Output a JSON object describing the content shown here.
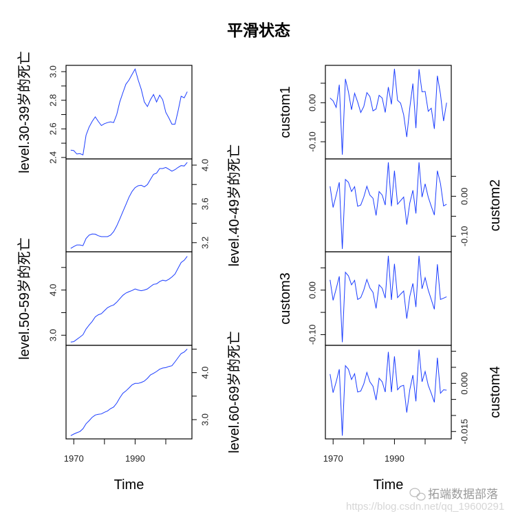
{
  "chart_data": {
    "type": "line",
    "title": "平滑状态",
    "line_color": "#1a3cff",
    "x": [
      1969,
      1970,
      1971,
      1972,
      1973,
      1974,
      1975,
      1976,
      1977,
      1978,
      1979,
      1980,
      1981,
      1982,
      1983,
      1984,
      1985,
      1986,
      1987,
      1988,
      1989,
      1990,
      1991,
      1992,
      1993,
      1994,
      1995,
      1996,
      1997,
      1998,
      1999,
      2000,
      2001,
      2002,
      2003,
      2004,
      2005,
      2006,
      2007
    ],
    "xlim": [
      1967.48,
      2008.52
    ],
    "xticks": [
      1970,
      1980,
      1990,
      2000
    ],
    "xtick_labels": [
      "1970",
      "",
      "1990",
      ""
    ],
    "xlabel": "Time",
    "grid": false,
    "columns": [
      {
        "panels": [
          {
            "ylabel": "level.30-39岁的死亡",
            "axis": "left",
            "ylim": [
              2.39,
              3.044
            ],
            "yticks": [
              2.4,
              2.5,
              2.6,
              2.7,
              2.8,
              2.9,
              3.0
            ],
            "ytick_labels": [
              "2.4",
              "",
              "2.6",
              "",
              "2.8",
              "",
              "3.0"
            ],
            "values": [
              2.451,
              2.448,
              2.424,
              2.427,
              2.418,
              2.556,
              2.612,
              2.652,
              2.684,
              2.652,
              2.623,
              2.636,
              2.644,
              2.649,
              2.644,
              2.7,
              2.788,
              2.852,
              2.912,
              2.941,
              2.981,
              3.018,
              2.941,
              2.877,
              2.788,
              2.756,
              2.804,
              2.84,
              2.788,
              2.836,
              2.804,
              2.716,
              2.676,
              2.633,
              2.633,
              2.724,
              2.828,
              2.817,
              2.86
            ]
          },
          {
            "ylabel": "level.40-49岁的死亡",
            "axis": "right",
            "ylim": [
              3.106,
              4.064
            ],
            "yticks": [
              3.2,
              3.4,
              3.6,
              3.8,
              4.0
            ],
            "ytick_labels": [
              "3.2",
              "",
              "3.6",
              "",
              "4.0"
            ],
            "values": [
              3.141,
              3.16,
              3.176,
              3.176,
              3.169,
              3.243,
              3.278,
              3.29,
              3.288,
              3.271,
              3.262,
              3.262,
              3.262,
              3.278,
              3.314,
              3.373,
              3.444,
              3.52,
              3.593,
              3.669,
              3.728,
              3.768,
              3.787,
              3.792,
              3.775,
              3.799,
              3.853,
              3.905,
              3.917,
              3.965,
              3.965,
              3.976,
              3.957,
              3.938,
              3.953,
              3.976,
              3.995,
              3.991,
              4.028
            ]
          },
          {
            "ylabel": "level.50-59岁的死亡",
            "axis": "left",
            "ylim": [
              2.776,
              4.847
            ],
            "yticks": [
              3.0,
              3.5,
              4.0,
              4.5
            ],
            "ytick_labels": [
              "3.0",
              "",
              "4.0",
              ""
            ],
            "values": [
              2.848,
              2.858,
              2.909,
              2.959,
              3.01,
              3.137,
              3.223,
              3.305,
              3.406,
              3.452,
              3.477,
              3.543,
              3.609,
              3.645,
              3.67,
              3.731,
              3.807,
              3.883,
              3.934,
              3.964,
              3.99,
              4.025,
              4.0,
              3.985,
              4.0,
              4.025,
              4.076,
              4.127,
              4.137,
              4.188,
              4.218,
              4.203,
              4.239,
              4.289,
              4.355,
              4.482,
              4.609,
              4.66,
              4.746
            ]
          },
          {
            "ylabel": "level.60-69岁的死亡",
            "axis": "right",
            "ylim": [
              2.59,
              4.581
            ],
            "yticks": [
              3.0,
              3.5,
              4.0,
              4.5
            ],
            "ytick_labels": [
              "3.0",
              "",
              "4.0",
              ""
            ],
            "values": [
              2.659,
              2.693,
              2.722,
              2.746,
              2.805,
              2.912,
              2.976,
              3.049,
              3.098,
              3.112,
              3.122,
              3.156,
              3.185,
              3.234,
              3.268,
              3.351,
              3.463,
              3.561,
              3.61,
              3.673,
              3.741,
              3.771,
              3.771,
              3.79,
              3.82,
              3.878,
              3.951,
              3.985,
              4.024,
              4.073,
              4.098,
              4.107,
              4.132,
              4.146,
              4.229,
              4.317,
              4.405,
              4.439,
              4.502
            ]
          }
        ]
      },
      {
        "panels": [
          {
            "ylabel": "custom1",
            "axis": "left",
            "ylim": [
              -0.144,
              0.0958
            ],
            "yticks": [
              -0.1,
              -0.05,
              0.0,
              0.05
            ],
            "ytick_labels": [
              "-0.10",
              "",
              "0.00",
              ""
            ],
            "values": [
              0.012,
              0.005,
              -0.012,
              0.046,
              -0.133,
              0.061,
              0.028,
              -0.018,
              0.024,
              0.002,
              -0.025,
              -0.01,
              0.026,
              0.016,
              -0.021,
              -0.016,
              0.019,
              0.012,
              -0.025,
              0.04,
              -0.004,
              0.087,
              0.006,
              -0.001,
              -0.031,
              -0.088,
              -0.013,
              0.049,
              -0.065,
              0.086,
              0.028,
              0.029,
              -0.022,
              -0.014,
              -0.067,
              0.069,
              0.022,
              -0.047,
              0.0
            ]
          },
          {
            "ylabel": "custom2",
            "axis": "right",
            "ylim": [
              -0.139,
              0.0936
            ],
            "yticks": [
              -0.1,
              -0.05,
              0.0,
              0.05
            ],
            "ytick_labels": [
              "-0.10",
              "",
              "0.00",
              ""
            ],
            "values": [
              0.025,
              -0.028,
              0.003,
              0.035,
              -0.132,
              0.042,
              0.035,
              0.012,
              0.024,
              -0.025,
              -0.022,
              -0.002,
              0.025,
              0.003,
              -0.005,
              -0.048,
              0.012,
              0.003,
              -0.022,
              0.085,
              -0.025,
              0.064,
              -0.02,
              -0.011,
              -0.002,
              -0.071,
              -0.017,
              0.015,
              -0.043,
              0.085,
              -0.002,
              0.031,
              -0.002,
              -0.025,
              -0.047,
              0.064,
              0.032,
              -0.024,
              -0.02
            ]
          },
          {
            "ylabel": "custom3",
            "axis": "left",
            "ylim": [
              -0.124,
              0.0861
            ],
            "yticks": [
              -0.1,
              -0.05,
              0.0,
              0.05
            ],
            "ytick_labels": [
              "-0.10",
              "",
              "0.00",
              ""
            ],
            "values": [
              0.023,
              -0.023,
              0.003,
              0.031,
              -0.117,
              0.04,
              0.032,
              0.012,
              0.022,
              -0.021,
              -0.017,
              0.0,
              0.024,
              0.005,
              -0.005,
              -0.041,
              0.012,
              0.004,
              -0.018,
              0.077,
              -0.022,
              0.059,
              -0.017,
              -0.009,
              -0.002,
              -0.064,
              -0.014,
              0.015,
              -0.038,
              0.077,
              0.003,
              0.028,
              0.0,
              -0.021,
              -0.043,
              0.058,
              -0.021,
              -0.018,
              -0.015
            ]
          },
          {
            "ylabel": "custom4",
            "axis": "right",
            "ylim": [
              -0.0173,
              0.01185
            ],
            "yticks": [
              -0.015,
              -0.01,
              -0.005,
              0.0,
              0.005,
              0.01
            ],
            "ytick_labels": [
              "-0.015",
              "",
              "",
              "0.000",
              "",
              ""
            ],
            "values": [
              0.0029,
              -0.0029,
              0.0005,
              0.0044,
              -0.0163,
              0.0055,
              0.0044,
              0.0012,
              0.003,
              -0.0027,
              -0.0024,
              -0.0002,
              0.0034,
              0.0005,
              -0.0009,
              -0.0052,
              0.0016,
              0.0005,
              -0.0027,
              0.0098,
              -0.0027,
              0.0084,
              -0.002,
              -0.0009,
              -0.0006,
              -0.0091,
              -0.002,
              0.0026,
              -0.0056,
              0.0105,
              0.0005,
              0.0037,
              -0.0006,
              -0.0031,
              -0.0059,
              0.008,
              -0.0031,
              -0.002,
              -0.0021
            ]
          }
        ]
      }
    ]
  },
  "watermark": {
    "brand": "拓端数据部落",
    "url": "https://blog.csdn.net/qq_19600291"
  }
}
